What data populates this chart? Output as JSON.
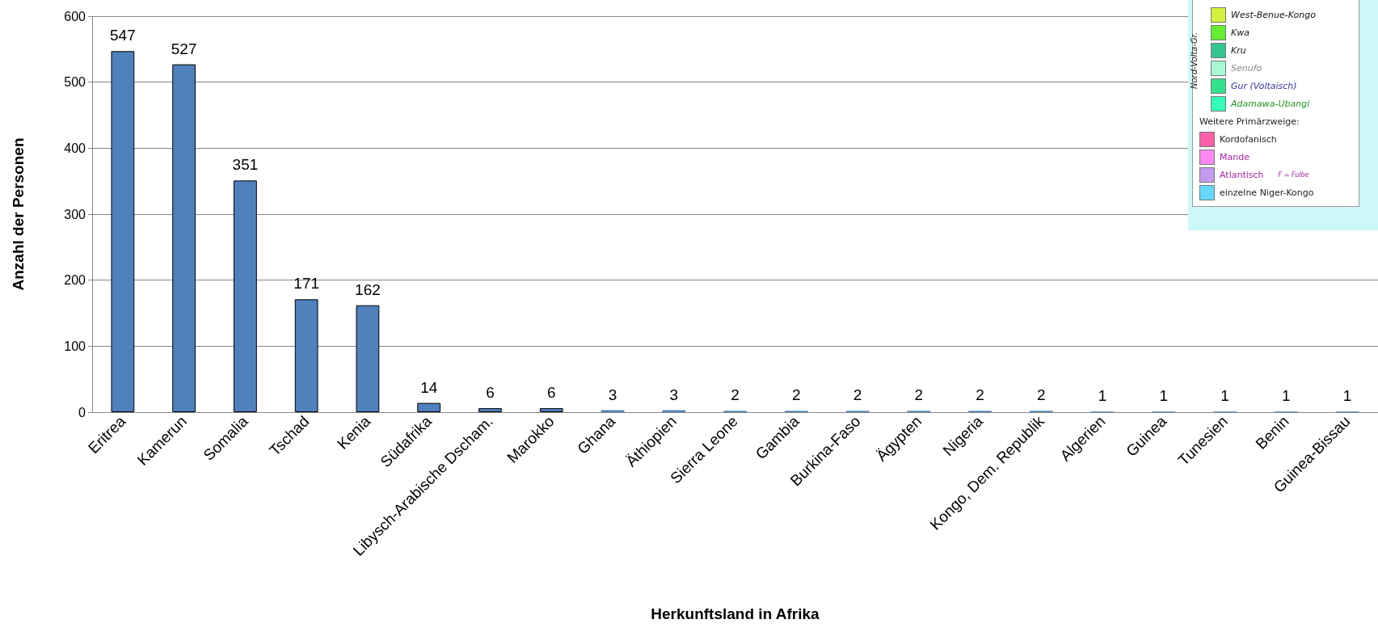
{
  "chart_data": {
    "type": "bar",
    "xlabel": "Herkunftsland in Afrika",
    "ylabel": "Anzahl der Personen",
    "categories": [
      "Eritrea",
      "Kamerun",
      "Somalia",
      "Tschad",
      "Kenia",
      "Südafrika",
      "Libysch-Arabische Dscham.",
      "Marokko",
      "Ghana",
      "Äthiopien",
      "Sierra Leone",
      "Gambia",
      "Burkina-Faso",
      "Ägypten",
      "Nigeria",
      "Kongo, Dem. Republik",
      "Algerien",
      "Guinea",
      "Tunesien",
      "Benin",
      "Guinea-Bissau"
    ],
    "values": [
      547,
      527,
      351,
      171,
      162,
      14,
      6,
      6,
      3,
      3,
      2,
      2,
      2,
      2,
      2,
      2,
      1,
      1,
      1,
      1,
      1
    ],
    "color": "#4f81bd",
    "data_labels": true,
    "grid": "y",
    "ylim": [
      0,
      600
    ],
    "yticks": [
      0,
      100,
      200,
      300,
      400,
      500,
      600
    ],
    "annotations": [
      "West-Benue-Kongo",
      "Kwa",
      "Kru",
      "Senufo",
      "Gur (Voltaisch)",
      "Adamawa-Ubangi",
      "Weitere Primärzweige:",
      "Kordofanisch",
      "Mande",
      "Atlantisch",
      "F = Fulbe",
      "einzelne Niger-Kongo",
      "Nord-Volta-Gr."
    ]
  }
}
